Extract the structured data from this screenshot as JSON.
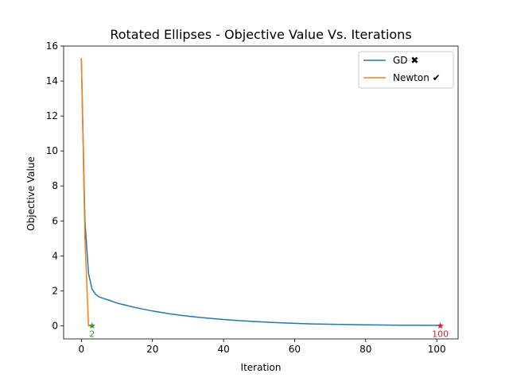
{
  "chart_data": {
    "type": "line",
    "title": "Rotated Ellipses - Objective Value Vs. Iterations",
    "xlabel": "Iteration",
    "ylabel": "Objective Value",
    "xlim": [
      -5,
      106
    ],
    "ylim": [
      -0.75,
      16
    ],
    "xticks": [
      0,
      20,
      40,
      60,
      80,
      100
    ],
    "yticks": [
      0,
      2,
      4,
      6,
      8,
      10,
      12,
      14,
      16
    ],
    "grid": false,
    "legend_position": "top-right",
    "series": [
      {
        "name": "GD ✖",
        "color": "#1f77b4",
        "x": [
          0,
          1,
          2,
          3,
          4,
          5,
          6,
          8,
          10,
          12,
          15,
          20,
          25,
          30,
          35,
          40,
          45,
          50,
          55,
          60,
          65,
          70,
          75,
          80,
          85,
          90,
          95,
          101
        ],
        "y": [
          15.3,
          6.0,
          3.0,
          2.1,
          1.8,
          1.65,
          1.58,
          1.45,
          1.3,
          1.2,
          1.05,
          0.85,
          0.68,
          0.55,
          0.45,
          0.36,
          0.29,
          0.23,
          0.18,
          0.14,
          0.11,
          0.09,
          0.07,
          0.055,
          0.045,
          0.035,
          0.03,
          0.02
        ]
      },
      {
        "name": "Newton ✔",
        "color": "#ff7f0e",
        "x": [
          0,
          1,
          2,
          3
        ],
        "y": [
          15.3,
          5.0,
          0.0,
          0.0
        ]
      }
    ],
    "markers": [
      {
        "x": 3,
        "y": 0.0,
        "color": "#2ca02c",
        "label": "2"
      },
      {
        "x": 101,
        "y": 0.0,
        "color": "#d62728",
        "label": "100"
      }
    ]
  }
}
